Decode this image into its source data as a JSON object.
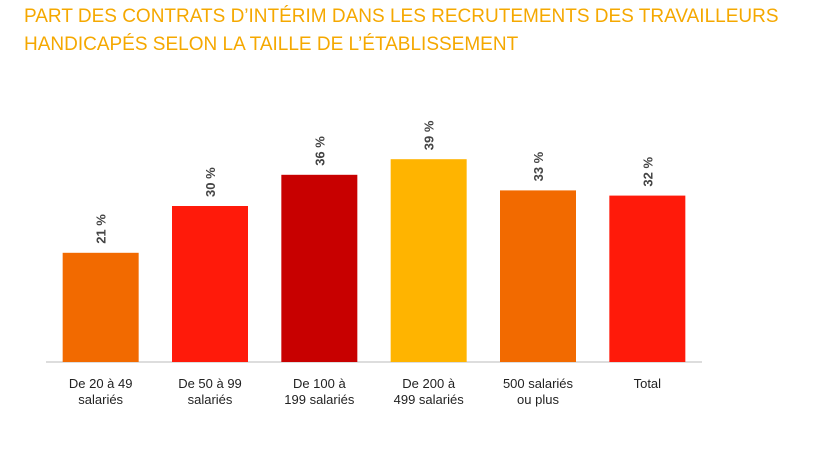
{
  "chart_data": {
    "type": "bar",
    "title": "PART DES CONTRATS D’INTÉRIM DANS LES RECRUTEMENTS DES TRAVAILLEURS\nHANDICAPÉS SELON LA TAILLE DE L’ÉTABLISSEMENT",
    "categories": [
      "De 20 à 49\nsalariés",
      "De 50 à 99\nsalariés",
      "De 100 à\n199 salariés",
      "De 200 à\n499 salariés",
      "500 salariés\nou plus",
      "Total"
    ],
    "values": [
      21,
      30,
      36,
      39,
      33,
      32
    ],
    "value_labels": [
      "21 %",
      "30 %",
      "36 %",
      "39 %",
      "33 %",
      "32 %"
    ],
    "colors": [
      "#f26a00",
      "#ff1a0a",
      "#c80000",
      "#ffb400",
      "#f26a00",
      "#ff1a0a"
    ],
    "ylim": [
      0,
      40
    ]
  }
}
